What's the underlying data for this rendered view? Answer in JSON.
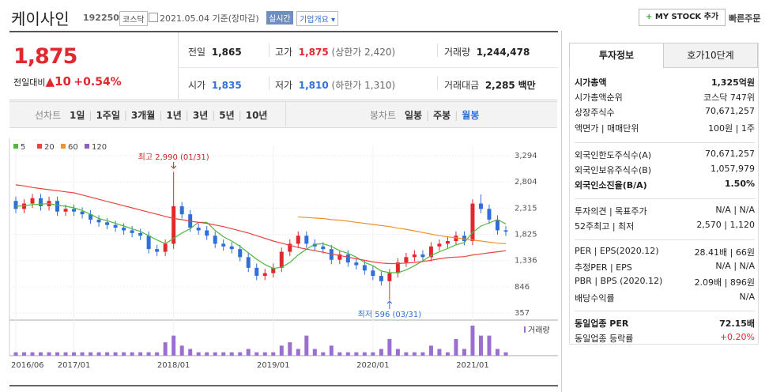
{
  "header": {
    "name": "케이사인",
    "code": "192250",
    "market": "코스닥",
    "date": "2021.05.04 기준(장마감)",
    "realtime": "실시간",
    "overview": "기업개요",
    "mystock": "MY STOCK 추가",
    "quick_order": "빠른주문"
  },
  "price": {
    "current": "1,875",
    "change_label": "전일대비",
    "change": "10",
    "change_pct": "+0.54%"
  },
  "summary": {
    "prev_label": "전일",
    "prev": "1,865",
    "high_label": "고가",
    "high": "1,875",
    "upper_limit": "(상한가 2,420)",
    "volume_label": "거래량",
    "volume": "1,244,478",
    "open_label": "시가",
    "open": "1,835",
    "low_label": "저가",
    "low": "1,810",
    "lower_limit": "(하한가 1,310)",
    "amount_label": "거래대금",
    "amount": "2,285",
    "amount_unit": "백만"
  },
  "periods": {
    "line_label": "선차트",
    "line": [
      "1일",
      "1주일",
      "3개월",
      "1년",
      "3년",
      "5년",
      "10년"
    ],
    "candle_label": "봉차트",
    "candle": [
      "일봉",
      "주봉",
      "월봉"
    ]
  },
  "info": {
    "tabs": [
      "투자정보",
      "호가10단계"
    ],
    "groups": [
      [
        [
          "시가총액",
          "1,325억원"
        ],
        [
          "시가총액순위",
          "코스닥 747위"
        ],
        [
          "상장주식수",
          "70,671,257"
        ],
        [
          "액면가 | 매매단위",
          "100원 | 1주"
        ]
      ],
      [
        [
          "외국인한도주식수(A)",
          "70,671,257"
        ],
        [
          "외국인보유주식수(B)",
          "1,057,979"
        ],
        [
          "외국인소진율(B/A)",
          "1.50%"
        ]
      ],
      [
        [
          "투자의견 | 목표주가",
          "N/A | N/A"
        ],
        [
          "52주최고 | 최저",
          "2,570 | 1,120"
        ]
      ],
      [
        [
          "PER | EPS(2020.12)",
          "28.41배 | 66원"
        ],
        [
          "추정PER | EPS",
          "N/A | N/A"
        ],
        [
          "PBR | BPS (2020.12)",
          "2.09배 | 896원"
        ],
        [
          "배당수익률",
          "N/A"
        ]
      ],
      [
        [
          "동일업종 PER",
          "72.15배"
        ],
        [
          "동일업종 등락률",
          "+0.20%"
        ]
      ]
    ]
  },
  "chart_data": {
    "type": "candlestick",
    "categories": [
      "2016/06",
      null,
      null,
      null,
      null,
      null,
      null,
      "2017/01",
      null,
      null,
      null,
      null,
      null,
      null,
      null,
      null,
      null,
      null,
      null,
      "2018/01",
      null,
      null,
      null,
      null,
      null,
      null,
      null,
      null,
      null,
      null,
      null,
      "2019/01",
      null,
      null,
      null,
      null,
      null,
      null,
      null,
      null,
      null,
      null,
      null,
      "2020/01",
      null,
      null,
      null,
      null,
      null,
      null,
      null,
      null,
      null,
      null,
      null,
      "2021/01",
      null,
      null,
      null,
      null
    ],
    "open": [
      2450,
      2300,
      2400,
      2500,
      2350,
      2450,
      2250,
      2300,
      2250,
      2200,
      2100,
      2050,
      2000,
      1950,
      1900,
      1850,
      1800,
      1550,
      1500,
      1650,
      2350,
      2200,
      1950,
      1900,
      1800,
      1650,
      1600,
      1550,
      1400,
      1200,
      1050,
      1100,
      1200,
      1500,
      1650,
      1800,
      1650,
      1600,
      1550,
      1350,
      1450,
      1300,
      1250,
      1150,
      1050,
      950,
      1100,
      1300,
      1400,
      1450,
      1400,
      1600,
      1650,
      1700,
      1800,
      1700,
      2400,
      2300,
      2100,
      1900
    ],
    "high": [
      2530,
      2480,
      2580,
      2580,
      2530,
      2530,
      2380,
      2380,
      2330,
      2280,
      2180,
      2130,
      2080,
      2030,
      1980,
      1930,
      1880,
      1630,
      1730,
      2990,
      2430,
      2280,
      2030,
      1980,
      1880,
      1730,
      1680,
      1630,
      1480,
      1280,
      1180,
      1280,
      1580,
      1730,
      1880,
      1880,
      1730,
      1680,
      1630,
      1530,
      1530,
      1380,
      1330,
      1230,
      1130,
      1180,
      1380,
      1480,
      1530,
      1530,
      1680,
      1730,
      1780,
      1880,
      1880,
      2480,
      2570,
      2380,
      2180,
      1980
    ],
    "low": [
      2220,
      2220,
      2320,
      2270,
      2270,
      2170,
      2170,
      2170,
      2120,
      2020,
      1970,
      1920,
      1870,
      1820,
      1770,
      1720,
      1470,
      1420,
      1420,
      1550,
      2120,
      1870,
      1820,
      1720,
      1570,
      1520,
      1470,
      1320,
      1120,
      970,
      970,
      1020,
      1120,
      1420,
      1570,
      1570,
      1520,
      1470,
      1270,
      1270,
      1220,
      1170,
      1070,
      970,
      870,
      596,
      1020,
      1220,
      1320,
      1320,
      1320,
      1520,
      1570,
      1620,
      1620,
      1620,
      2220,
      2020,
      1820,
      1795
    ],
    "close": [
      2300,
      2400,
      2500,
      2350,
      2450,
      2250,
      2300,
      2250,
      2200,
      2100,
      2050,
      2000,
      1950,
      1900,
      1850,
      1800,
      1550,
      1500,
      1650,
      2350,
      2200,
      1950,
      1900,
      1800,
      1650,
      1600,
      1550,
      1400,
      1200,
      1050,
      1100,
      1200,
      1500,
      1650,
      1800,
      1650,
      1600,
      1550,
      1350,
      1450,
      1300,
      1250,
      1150,
      1050,
      950,
      1100,
      1300,
      1400,
      1450,
      1400,
      1600,
      1650,
      1700,
      1800,
      1700,
      2400,
      2300,
      2100,
      1900,
      1875
    ],
    "volume": [
      1,
      1,
      1,
      1,
      1,
      1,
      1,
      1,
      1,
      1,
      1,
      1,
      1,
      1,
      1,
      1,
      1,
      1,
      4,
      6,
      3,
      2,
      1,
      1,
      1,
      1,
      1,
      1,
      2,
      1,
      1,
      1,
      3,
      4,
      2,
      6,
      2,
      1,
      3,
      1,
      1,
      1,
      1,
      1,
      2,
      5,
      2,
      1,
      1,
      1,
      3,
      2,
      1,
      5,
      2,
      9,
      6,
      6,
      2,
      1
    ],
    "volume_label": "거래량",
    "up_color": "#e0282e",
    "down_color": "#2f6fd6",
    "volume_color": "#9b6fcf",
    "series": [
      {
        "name": "5",
        "color": "#52b641",
        "values": [
          2350,
          2360,
          2380,
          2390,
          2400,
          2370,
          2350,
          2320,
          2270,
          2200,
          2120,
          2080,
          2030,
          1980,
          1930,
          1880,
          1800,
          1720,
          1650,
          1750,
          1850,
          1930,
          2050,
          2050,
          1900,
          1780,
          1700,
          1600,
          1480,
          1360,
          1260,
          1190,
          1210,
          1300,
          1440,
          1550,
          1640,
          1650,
          1600,
          1520,
          1470,
          1400,
          1300,
          1240,
          1140,
          1110,
          1110,
          1160,
          1240,
          1330,
          1430,
          1500,
          1560,
          1630,
          1670,
          1860,
          1980,
          2040,
          2100,
          2020
        ]
      },
      {
        "name": "20",
        "color": "#e8433d",
        "values": [
          2750,
          2730,
          2700,
          2680,
          2660,
          2640,
          2620,
          2600,
          2560,
          2520,
          2480,
          2440,
          2400,
          2360,
          2320,
          2280,
          2240,
          2200,
          2160,
          2120,
          2100,
          2070,
          2050,
          2030,
          2000,
          1970,
          1930,
          1890,
          1850,
          1800,
          1750,
          1700,
          1660,
          1620,
          1580,
          1550,
          1520,
          1490,
          1460,
          1430,
          1400,
          1370,
          1340,
          1310,
          1290,
          1280,
          1280,
          1290,
          1300,
          1320,
          1340,
          1370,
          1390,
          1400,
          1410,
          1440,
          1460,
          1480,
          1500,
          1520
        ]
      },
      {
        "name": "60",
        "color": "#f0922d",
        "values": [
          null,
          null,
          null,
          null,
          null,
          null,
          null,
          null,
          null,
          null,
          null,
          null,
          null,
          null,
          null,
          null,
          null,
          null,
          null,
          null,
          null,
          null,
          null,
          null,
          null,
          null,
          null,
          null,
          null,
          null,
          null,
          null,
          null,
          null,
          2150,
          2140,
          2130,
          2120,
          2100,
          2090,
          2070,
          2050,
          2030,
          2010,
          1990,
          1970,
          1940,
          1920,
          1890,
          1860,
          1830,
          1800,
          1780,
          1760,
          1740,
          1720,
          1700,
          1680,
          1660,
          1650
        ]
      },
      {
        "name": "120",
        "color": "#8f5ec4",
        "values": [
          null,
          null,
          null,
          null,
          null,
          null,
          null,
          null,
          null,
          null,
          null,
          null,
          null,
          null,
          null,
          null,
          null,
          null,
          null,
          null,
          null,
          null,
          null,
          null,
          null,
          null,
          null,
          null,
          null,
          null,
          null,
          null,
          null,
          null,
          null,
          null,
          null,
          null,
          null,
          null,
          null,
          null,
          null,
          null,
          null,
          null,
          null,
          null,
          null,
          null,
          null,
          null,
          null,
          null,
          null,
          null,
          null,
          null,
          null,
          null
        ]
      }
    ],
    "ylim": [
      357,
      3294
    ],
    "yticks": [
      {
        "value": 357,
        "label": "357"
      },
      {
        "value": 846,
        "label": "846"
      },
      {
        "value": 1336,
        "label": "1,336"
      },
      {
        "value": 1825,
        "label": "1,825"
      },
      {
        "value": 2315,
        "label": "2,315"
      },
      {
        "value": 2804,
        "label": "2,804"
      },
      {
        "value": 3294,
        "label": "3,294"
      }
    ],
    "annotations": [
      "최고 2,990 (01/31)",
      "최저 596 (03/31)"
    ]
  }
}
